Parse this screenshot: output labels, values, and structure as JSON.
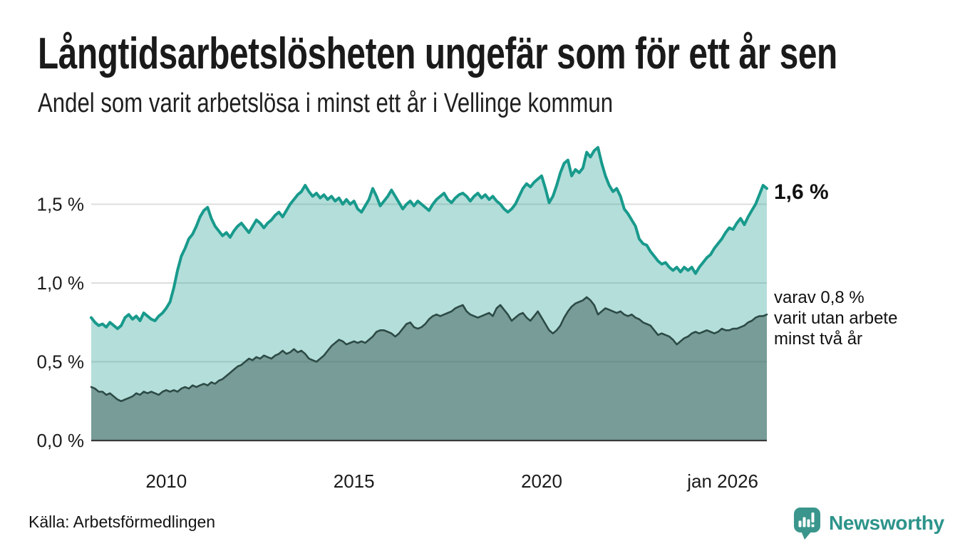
{
  "chart_data": {
    "type": "area",
    "title": "Långtidsarbetslösheten ungefär som för ett år sen",
    "subtitle": "Andel som varit arbetslösa i minst ett år i Vellinge kommun",
    "unit": "%",
    "grid": true,
    "x_axis": {
      "range": [
        2008.0,
        2026.0
      ],
      "ticks": [
        {
          "label": "2010",
          "year": 2010,
          "anchor": "middle"
        },
        {
          "label": "2015",
          "year": 2015,
          "anchor": "middle"
        },
        {
          "label": "2020",
          "year": 2020,
          "anchor": "middle"
        },
        {
          "label": "jan 2026",
          "year": 2026,
          "anchor": "end"
        }
      ]
    },
    "y_axis": {
      "range": [
        0,
        1.9
      ],
      "ticks": [
        {
          "label": "0,0 %",
          "value": 0.0
        },
        {
          "label": "0,5 %",
          "value": 0.5
        },
        {
          "label": "1,0 %",
          "value": 1.0
        },
        {
          "label": "1,5 %",
          "value": 1.5
        }
      ]
    },
    "x_start": 2008.0,
    "x_step": 0.1,
    "series": [
      {
        "name": "arbetslösa minst ett år",
        "line_color": "#189a8c",
        "fill_color": "rgba(26,156,142,0.33)",
        "line_width": 4,
        "latest_value_pct": 1.6,
        "values": [
          0.78,
          0.75,
          0.73,
          0.74,
          0.72,
          0.75,
          0.73,
          0.71,
          0.73,
          0.78,
          0.8,
          0.77,
          0.79,
          0.76,
          0.81,
          0.79,
          0.77,
          0.76,
          0.79,
          0.81,
          0.84,
          0.88,
          0.97,
          1.08,
          1.17,
          1.22,
          1.28,
          1.31,
          1.36,
          1.42,
          1.46,
          1.48,
          1.41,
          1.36,
          1.33,
          1.3,
          1.32,
          1.29,
          1.33,
          1.36,
          1.38,
          1.35,
          1.32,
          1.36,
          1.4,
          1.38,
          1.35,
          1.38,
          1.4,
          1.43,
          1.45,
          1.42,
          1.46,
          1.5,
          1.53,
          1.56,
          1.58,
          1.62,
          1.58,
          1.55,
          1.57,
          1.54,
          1.56,
          1.53,
          1.55,
          1.52,
          1.54,
          1.5,
          1.53,
          1.5,
          1.52,
          1.47,
          1.45,
          1.49,
          1.53,
          1.6,
          1.55,
          1.49,
          1.52,
          1.55,
          1.59,
          1.55,
          1.51,
          1.47,
          1.5,
          1.52,
          1.49,
          1.52,
          1.5,
          1.48,
          1.46,
          1.5,
          1.53,
          1.55,
          1.57,
          1.53,
          1.51,
          1.54,
          1.56,
          1.57,
          1.55,
          1.52,
          1.55,
          1.57,
          1.54,
          1.56,
          1.53,
          1.55,
          1.52,
          1.5,
          1.47,
          1.45,
          1.47,
          1.5,
          1.55,
          1.6,
          1.63,
          1.61,
          1.64,
          1.66,
          1.68,
          1.6,
          1.51,
          1.55,
          1.62,
          1.7,
          1.76,
          1.78,
          1.68,
          1.72,
          1.7,
          1.73,
          1.83,
          1.8,
          1.84,
          1.86,
          1.76,
          1.68,
          1.62,
          1.58,
          1.6,
          1.55,
          1.47,
          1.44,
          1.4,
          1.36,
          1.28,
          1.25,
          1.24,
          1.2,
          1.17,
          1.14,
          1.12,
          1.13,
          1.1,
          1.08,
          1.1,
          1.07,
          1.1,
          1.08,
          1.1,
          1.06,
          1.1,
          1.13,
          1.16,
          1.18,
          1.22,
          1.25,
          1.28,
          1.32,
          1.35,
          1.34,
          1.38,
          1.41,
          1.37,
          1.42,
          1.46,
          1.5,
          1.56,
          1.62,
          1.6
        ]
      },
      {
        "name": "varit utan arbete minst två år",
        "line_color": "#2d4b46",
        "fill_color": "rgba(46,76,71,0.45)",
        "line_width": 2.6,
        "latest_value_pct": 0.8,
        "values": [
          0.34,
          0.33,
          0.31,
          0.31,
          0.29,
          0.3,
          0.28,
          0.26,
          0.25,
          0.26,
          0.27,
          0.28,
          0.3,
          0.29,
          0.31,
          0.3,
          0.31,
          0.3,
          0.29,
          0.31,
          0.32,
          0.31,
          0.32,
          0.31,
          0.33,
          0.34,
          0.33,
          0.35,
          0.34,
          0.35,
          0.36,
          0.35,
          0.37,
          0.36,
          0.38,
          0.39,
          0.41,
          0.43,
          0.45,
          0.47,
          0.48,
          0.5,
          0.52,
          0.51,
          0.53,
          0.52,
          0.54,
          0.53,
          0.52,
          0.54,
          0.55,
          0.57,
          0.55,
          0.56,
          0.58,
          0.56,
          0.57,
          0.55,
          0.52,
          0.51,
          0.5,
          0.52,
          0.54,
          0.57,
          0.6,
          0.62,
          0.64,
          0.63,
          0.61,
          0.62,
          0.63,
          0.62,
          0.63,
          0.62,
          0.64,
          0.66,
          0.69,
          0.7,
          0.7,
          0.69,
          0.68,
          0.66,
          0.68,
          0.71,
          0.74,
          0.75,
          0.72,
          0.71,
          0.72,
          0.74,
          0.77,
          0.79,
          0.8,
          0.79,
          0.8,
          0.81,
          0.82,
          0.84,
          0.85,
          0.86,
          0.82,
          0.8,
          0.79,
          0.78,
          0.79,
          0.8,
          0.81,
          0.79,
          0.84,
          0.86,
          0.83,
          0.8,
          0.76,
          0.78,
          0.8,
          0.81,
          0.78,
          0.76,
          0.79,
          0.82,
          0.78,
          0.74,
          0.7,
          0.68,
          0.7,
          0.73,
          0.78,
          0.82,
          0.85,
          0.87,
          0.88,
          0.89,
          0.91,
          0.89,
          0.86,
          0.8,
          0.82,
          0.84,
          0.83,
          0.82,
          0.81,
          0.82,
          0.8,
          0.79,
          0.8,
          0.78,
          0.77,
          0.75,
          0.74,
          0.73,
          0.7,
          0.67,
          0.68,
          0.67,
          0.66,
          0.64,
          0.61,
          0.63,
          0.65,
          0.66,
          0.68,
          0.69,
          0.68,
          0.69,
          0.7,
          0.69,
          0.68,
          0.69,
          0.71,
          0.7,
          0.7,
          0.71,
          0.71,
          0.72,
          0.73,
          0.75,
          0.76,
          0.78,
          0.79,
          0.79,
          0.8
        ]
      }
    ],
    "annotations": {
      "latest": "1,6 %",
      "secondary_lines": [
        "varav 0,8 %",
        "varit utan arbete",
        "minst två år"
      ]
    },
    "colors": {
      "gridline": "#dedede",
      "zero_axis": "#3a3a3a",
      "background": "#ffffff"
    }
  },
  "footer": {
    "source": "Källa: Arbetsförmedlingen",
    "brand": "Newsworthy",
    "brand_color": "#2d948a",
    "brand_icon_color": "#3a968c"
  }
}
